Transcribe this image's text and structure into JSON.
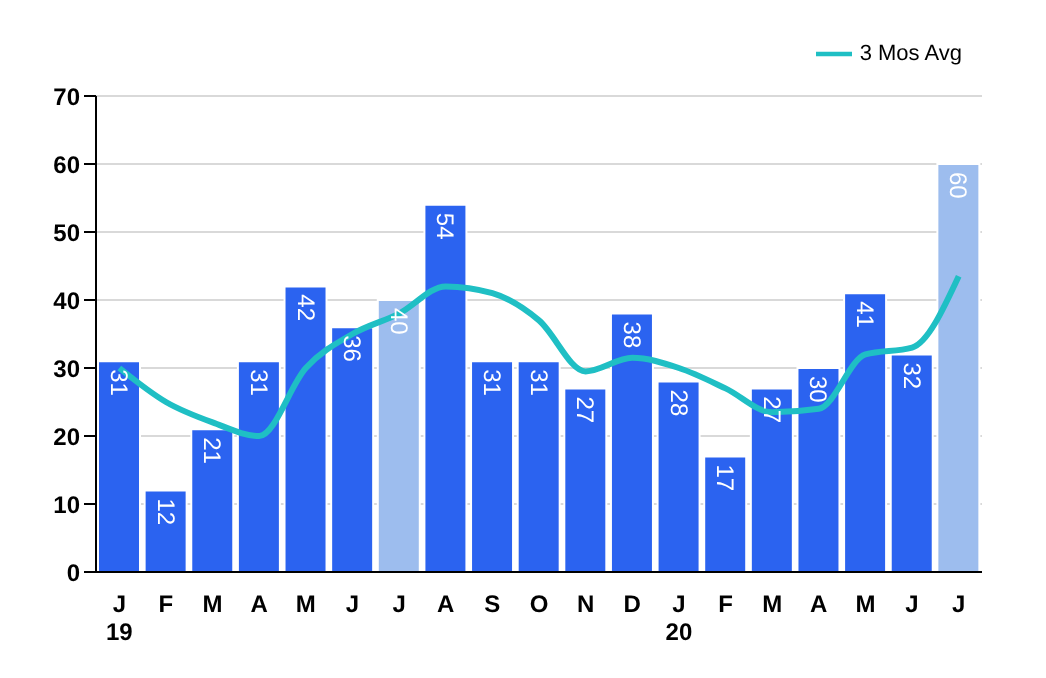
{
  "chart_data": {
    "type": "bar",
    "categories": [
      "J\n19",
      "F",
      "M",
      "A",
      "M",
      "J",
      "J",
      "A",
      "S",
      "O",
      "N",
      "D",
      "J\n20",
      "F",
      "M",
      "A",
      "M",
      "J",
      "J"
    ],
    "series": [
      {
        "colors": [
          "#2b63f0",
          "#2b63f0",
          "#2b63f0",
          "#2b63f0",
          "#2b63f0",
          "#2b63f0",
          "#9dbdee",
          "#2b63f0",
          "#2b63f0",
          "#2b63f0",
          "#2b63f0",
          "#2b63f0",
          "#2b63f0",
          "#2b63f0",
          "#2b63f0",
          "#2b63f0",
          "#2b63f0",
          "#2b63f0",
          "#9dbdee"
        ],
        "values": [
          31,
          12,
          21,
          31,
          42,
          36,
          40,
          54,
          31,
          31,
          27,
          38,
          28,
          17,
          27,
          30,
          41,
          32,
          60
        ],
        "value_labels": [
          "31",
          "12",
          "21",
          "31",
          "42",
          "36",
          "40",
          "54",
          "31",
          "31",
          "27",
          "38",
          "28",
          "17",
          "27",
          "30",
          "41",
          "32",
          "60"
        ]
      },
      {
        "type": "line",
        "name": "3 Mos Avg",
        "color": "#1fbfc4",
        "values": [
          30,
          25,
          22,
          20,
          30,
          35,
          38,
          42,
          41,
          37,
          29.5,
          31.5,
          30,
          27,
          23.5,
          24,
          32,
          33,
          43.5
        ]
      }
    ],
    "ylim": [
      0,
      70
    ],
    "yticks": [
      0,
      10,
      20,
      30,
      40,
      50,
      60,
      70
    ],
    "grid": "y",
    "legend": "top right",
    "marker": "none"
  }
}
